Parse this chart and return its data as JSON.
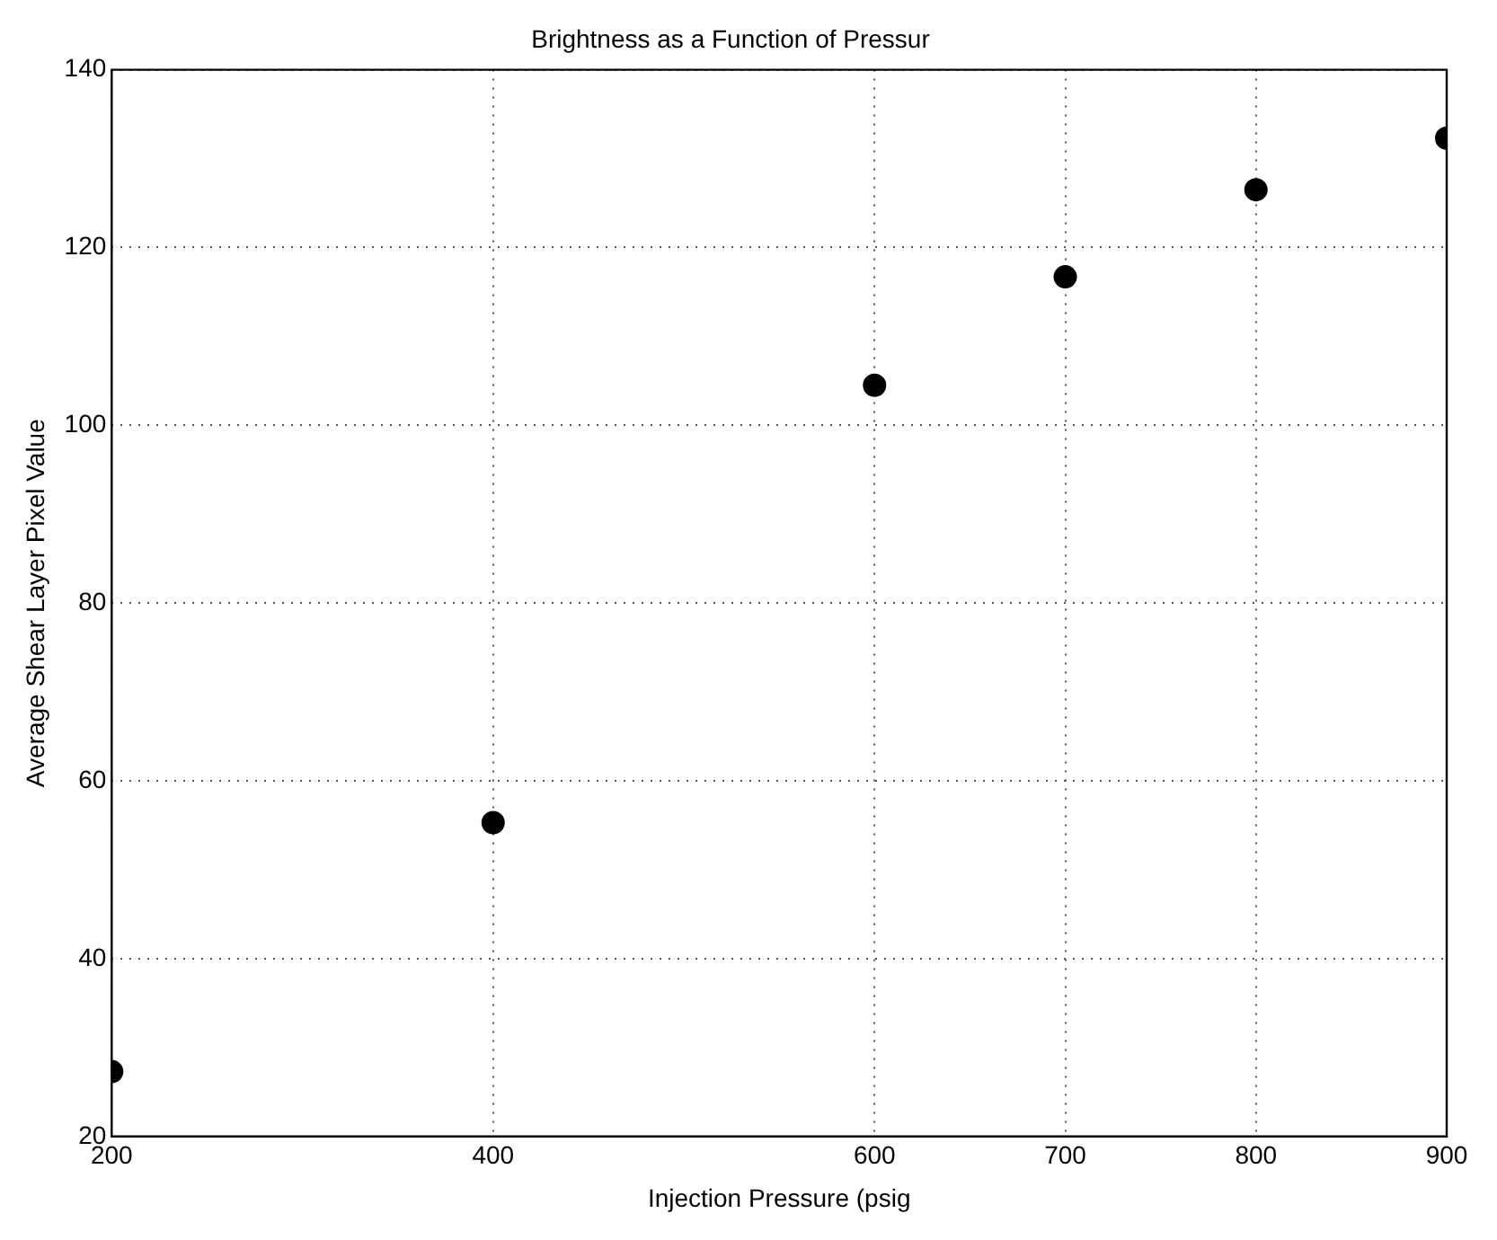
{
  "chart_data": {
    "type": "scatter",
    "title": "Brightness as a Function of Pressur",
    "xlabel": "Injection Pressure (psig",
    "ylabel": "Average Shear Layer Pixel Value",
    "x": [
      200,
      400,
      600,
      700,
      800,
      900
    ],
    "series": [
      {
        "color": "#000000",
        "values": [
          27.3,
          55.3,
          104.5,
          116.7,
          126.5,
          132.3
        ]
      }
    ],
    "xlim": [
      200,
      900
    ],
    "xticks": [
      200,
      400,
      600,
      700,
      800,
      900
    ],
    "ylim": [
      20,
      140
    ],
    "yticks": [
      20,
      40,
      60,
      80,
      100,
      120,
      140
    ],
    "grid": true,
    "marker": "circle",
    "legend": false
  }
}
